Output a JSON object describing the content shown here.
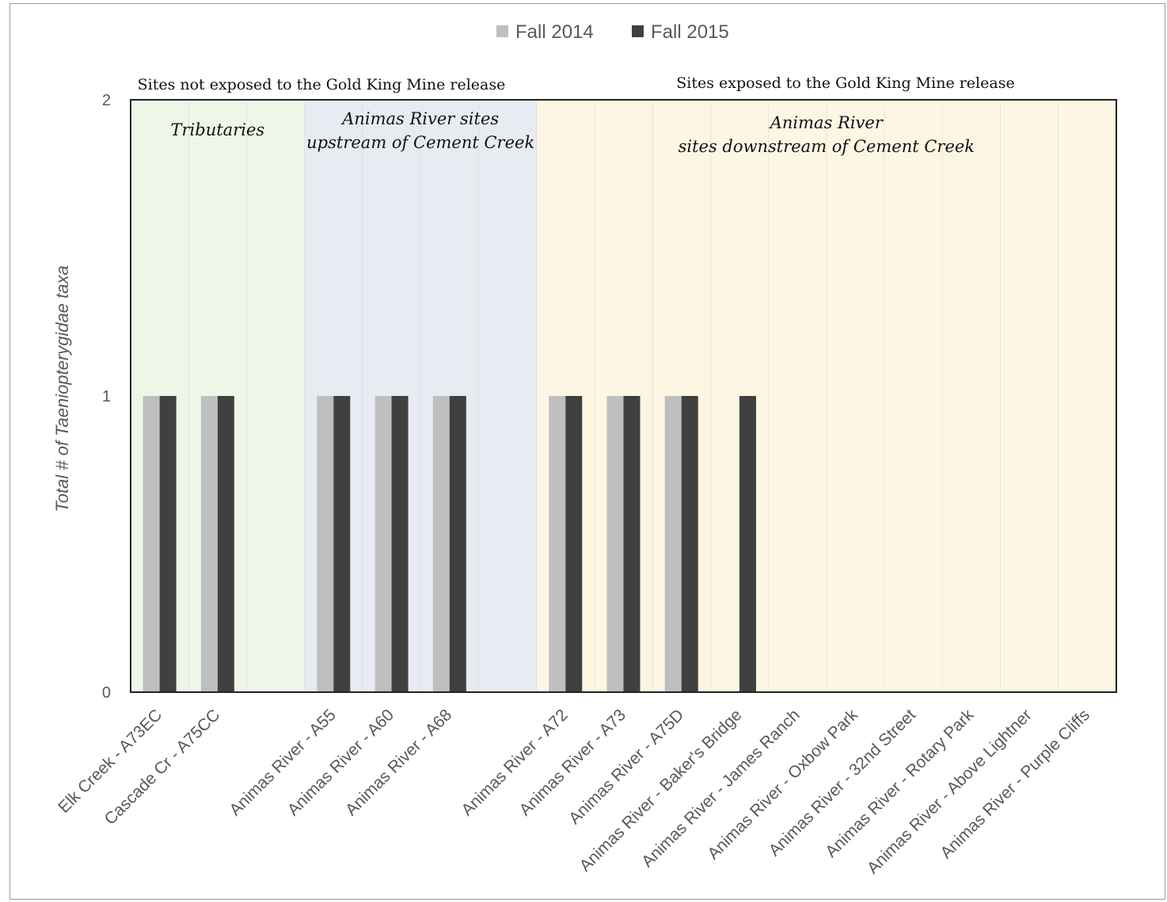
{
  "chart_data": {
    "type": "bar",
    "categories": [
      "Elk Creek - A73EC",
      "Cascade Cr - A75CC",
      "",
      "Animas River - A55",
      "Animas River - A60",
      "Animas River - A68",
      "",
      "Animas River - A72",
      "Animas River - A73",
      "Animas River - A75D",
      "Animas River - Baker's Bridge",
      "Animas River - James Ranch",
      "Animas River - Oxbow Park",
      "Animas River - 32nd Street",
      "Animas River - Rotary Park",
      "Animas River - Above Lightner",
      "Animas River - Purple Cliffs"
    ],
    "series": [
      {
        "name": "Fall 2014",
        "color": "#bfbfbf",
        "values": [
          1,
          1,
          null,
          1,
          1,
          1,
          null,
          1,
          1,
          1,
          0,
          0,
          0,
          0,
          0,
          0,
          0
        ]
      },
      {
        "name": "Fall 2015",
        "color": "#404040",
        "values": [
          1,
          1,
          null,
          1,
          1,
          1,
          null,
          1,
          1,
          1,
          1,
          0,
          0,
          0,
          0,
          0,
          0
        ]
      }
    ],
    "ylabel": "Total # of Taeniopterygidae taxa",
    "ylim": [
      0,
      2
    ],
    "yticks": [
      0,
      1,
      2
    ],
    "legend_position": "top-center",
    "group_labels": {
      "not_exposed": "Sites not exposed to the Gold King Mine release",
      "exposed": "Sites exposed to the Gold King Mine release"
    },
    "regions": [
      {
        "label_lines": [
          "Tributaries"
        ],
        "from": 0,
        "to": 2,
        "color": "#eef6e8"
      },
      {
        "label_lines": [
          "Animas River sites",
          "upstream of Cement Creek"
        ],
        "from": 3,
        "to": 6,
        "color": "#e8ebf2"
      },
      {
        "label_lines": [
          "Animas River",
          "sites  downstream of Cement Creek"
        ],
        "from": 7,
        "to": 16,
        "color": "#fdf6e3"
      }
    ]
  }
}
